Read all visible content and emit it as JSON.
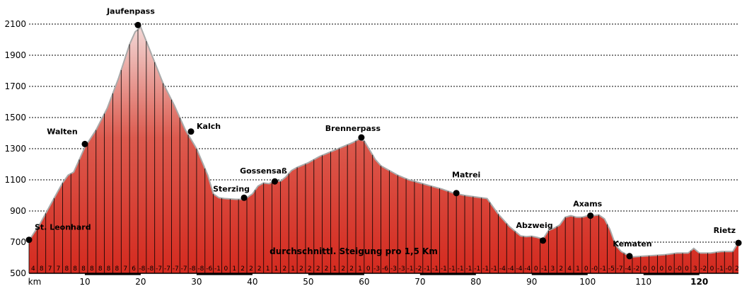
{
  "chart_data": {
    "type": "area",
    "title": "",
    "xlabel": "km",
    "ylabel": "",
    "xlim": [
      0,
      127
    ],
    "ylim": [
      500,
      2100
    ],
    "grid": true,
    "y_ticks": [
      500,
      700,
      900,
      1100,
      1300,
      1500,
      1700,
      1900,
      2100
    ],
    "x_ticks": [
      {
        "value": 10,
        "label": "10",
        "bold": false
      },
      {
        "value": 20,
        "label": "20",
        "bold": false
      },
      {
        "value": 30,
        "label": "30",
        "bold": false
      },
      {
        "value": 40,
        "label": "40",
        "bold": false
      },
      {
        "value": 50,
        "label": "50",
        "bold": false
      },
      {
        "value": 60,
        "label": "60",
        "bold": false
      },
      {
        "value": 70,
        "label": "70",
        "bold": false
      },
      {
        "value": 80,
        "label": "80",
        "bold": false
      },
      {
        "value": 90,
        "label": "90",
        "bold": false
      },
      {
        "value": 100,
        "label": "100",
        "bold": false
      },
      {
        "value": 110,
        "label": "110",
        "bold": false
      },
      {
        "value": 120,
        "label": "120",
        "bold": true
      }
    ],
    "series": [
      {
        "x": [
          0,
          2,
          4,
          6,
          7,
          8,
          10,
          12,
          14,
          16,
          18,
          19,
          20,
          22,
          24,
          26,
          28,
          30,
          32,
          33,
          34,
          35,
          37,
          38,
          39,
          40,
          41,
          42,
          43,
          44,
          45,
          46,
          47,
          48,
          50,
          52,
          54,
          56,
          58,
          59,
          60,
          61,
          62,
          63,
          64,
          66,
          68,
          70,
          72,
          74,
          76,
          78,
          80,
          82,
          84,
          86,
          88,
          89,
          90,
          91,
          92,
          93,
          94,
          95,
          96,
          97,
          98,
          99,
          100,
          101,
          102,
          103,
          104,
          105,
          106,
          107,
          108,
          110,
          112,
          114,
          116,
          118,
          119,
          120,
          122,
          124,
          126,
          127
        ],
        "y": [
          710,
          820,
          950,
          1080,
          1130,
          1150,
          1310,
          1420,
          1560,
          1750,
          1970,
          2050,
          2080,
          1900,
          1720,
          1580,
          1420,
          1300,
          1130,
          1010,
          985,
          980,
          975,
          975,
          985,
          1010,
          1060,
          1080,
          1075,
          1100,
          1090,
          1120,
          1160,
          1180,
          1210,
          1250,
          1280,
          1310,
          1340,
          1360,
          1350,
          1290,
          1230,
          1190,
          1170,
          1130,
          1100,
          1080,
          1060,
          1040,
          1015,
          1000,
          990,
          980,
          880,
          800,
          740,
          735,
          738,
          730,
          720,
          775,
          790,
          810,
          860,
          870,
          860,
          860,
          870,
          870,
          875,
          850,
          780,
          680,
          640,
          620,
          605,
          610,
          615,
          620,
          630,
          630,
          660,
          630,
          630,
          640,
          640,
          700
        ]
      }
    ],
    "waypoints": [
      {
        "name": "St. Leonhard",
        "km": 0,
        "ele": 715
      },
      {
        "name": "Walten",
        "km": 10,
        "ele": 1330
      },
      {
        "name": "Jaufenpass",
        "km": 19.5,
        "ele": 2094
      },
      {
        "name": "Kalch",
        "km": 29,
        "ele": 1410
      },
      {
        "name": "Sterzing",
        "km": 38.5,
        "ele": 985
      },
      {
        "name": "Gossensaß",
        "km": 44,
        "ele": 1090
      },
      {
        "name": "Brennerpass",
        "km": 59.5,
        "ele": 1372
      },
      {
        "name": "Matrei",
        "km": 76.5,
        "ele": 1015
      },
      {
        "name": "Abzweig",
        "km": 92,
        "ele": 710
      },
      {
        "name": "Axams",
        "km": 100.5,
        "ele": 870
      },
      {
        "name": "Kematen",
        "km": 107.5,
        "ele": 610
      },
      {
        "name": "Rietz",
        "km": 127,
        "ele": 695
      }
    ],
    "gradient_labels": [
      "4",
      "8",
      "7",
      "7",
      "8",
      "8",
      "8",
      "8",
      "8",
      "8",
      "8",
      "7",
      "6",
      "-8",
      "-8",
      "-7",
      "-7",
      "-7",
      "-7",
      "-8",
      "-8",
      "-6",
      "-1",
      "0",
      "1",
      "2",
      "2",
      "2",
      "1",
      "1",
      "2",
      "1",
      "2",
      "2",
      "2",
      "2",
      "1",
      "2",
      "2",
      "1",
      "0",
      "-3",
      "-6",
      "-3",
      "-3",
      "-1",
      "-2",
      "-1",
      "-1",
      "-1",
      "-1",
      "-1",
      "-1",
      "-1",
      "-1",
      "-1",
      "-4",
      "-4",
      "-4",
      "-4",
      "0",
      "-1",
      "3",
      "2",
      "4",
      "1",
      "0",
      "-0",
      "-1",
      "-5",
      "-7",
      "-4",
      "-2",
      "0",
      "0",
      "0",
      "0",
      "-0",
      "0",
      "3",
      "-2",
      "0",
      "-1",
      "-0",
      "2",
      "1",
      "6"
    ],
    "note": "durchschnittl. Steigung pro 1,5 Km",
    "colors": {
      "fill_top": "#f3d8d6",
      "fill_mid": "#dc5a4e",
      "fill_bottom": "#d42a1f",
      "outline": "#a9a9a9",
      "bars": "#000000",
      "grid": "#000000",
      "marker": "#000000"
    }
  }
}
